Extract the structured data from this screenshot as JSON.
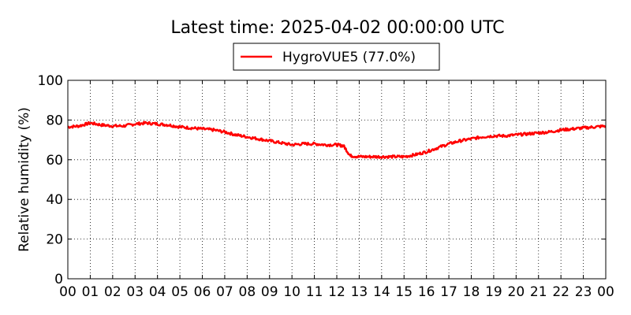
{
  "chart_data": {
    "type": "line",
    "title": "Latest time: 2025-04-02 00:00:00 UTC",
    "xlabel": "",
    "ylabel": "Relative humidity (%)",
    "xlim": [
      0,
      24
    ],
    "ylim": [
      0,
      100
    ],
    "x_tick_labels": [
      "00",
      "01",
      "02",
      "03",
      "04",
      "05",
      "06",
      "07",
      "08",
      "09",
      "10",
      "11",
      "12",
      "13",
      "14",
      "15",
      "16",
      "17",
      "18",
      "19",
      "20",
      "21",
      "22",
      "23",
      "00"
    ],
    "y_tick_labels": [
      "0",
      "20",
      "40",
      "60",
      "80",
      "100"
    ],
    "y_ticks": [
      0,
      20,
      40,
      60,
      80,
      100
    ],
    "grid": true,
    "legend_position": "top-center",
    "series": [
      {
        "name": "HygroVUE5 (77.0%)",
        "color": "#ff0000",
        "x": [
          0,
          0.5,
          1.0,
          1.5,
          2.0,
          2.5,
          3.0,
          3.5,
          4.0,
          4.5,
          5.0,
          5.5,
          6.0,
          6.5,
          7.0,
          7.5,
          8.0,
          8.5,
          9.0,
          9.5,
          10.0,
          10.5,
          11.0,
          11.5,
          12.0,
          12.3,
          12.6,
          13.0,
          13.5,
          14.0,
          14.5,
          15.0,
          15.5,
          16.0,
          16.5,
          17.0,
          17.5,
          18.0,
          18.5,
          19.0,
          19.5,
          20.0,
          20.5,
          21.0,
          21.5,
          22.0,
          22.5,
          23.0,
          23.5,
          24.0
        ],
        "y": [
          76.5,
          77,
          78.5,
          77.5,
          77,
          77,
          78,
          78.5,
          78,
          77.5,
          76.5,
          76,
          75.5,
          75,
          74,
          72.5,
          71.5,
          70.5,
          69.5,
          68.5,
          67.5,
          68,
          68,
          67.5,
          67.5,
          67,
          62,
          61.5,
          61.5,
          61.5,
          61.5,
          61.5,
          62.5,
          64,
          66,
          68,
          69.5,
          70.5,
          71.5,
          72,
          72,
          72.5,
          73,
          73.5,
          74,
          75,
          75.5,
          76,
          76.5,
          77
        ]
      }
    ]
  }
}
